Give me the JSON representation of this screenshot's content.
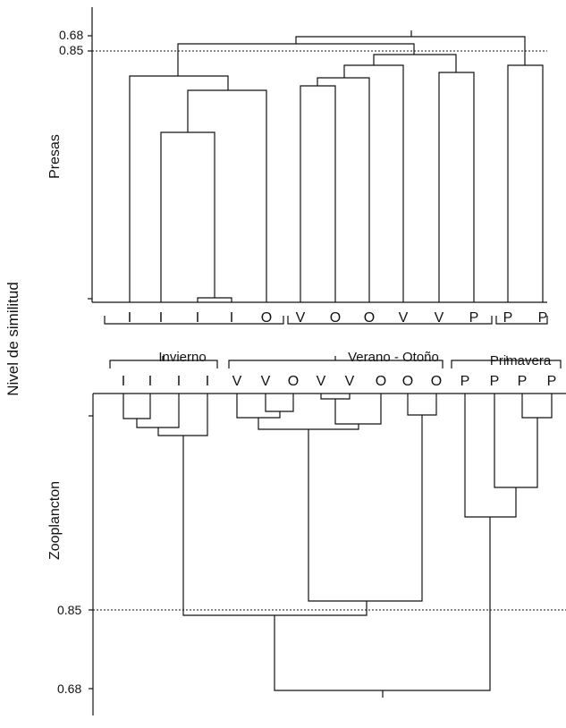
{
  "figure": {
    "y_axis_label": "Nivel de similitud",
    "groups": [
      "Invierno",
      "Verano - Otoño",
      "Primavera"
    ],
    "panels": [
      {
        "id": "presas",
        "label": "Presas",
        "tick_labels": [
          "0.68",
          "0.85"
        ],
        "leaves": [
          "I",
          "I",
          "I",
          "I",
          "O",
          "V",
          "O",
          "O",
          "V",
          "V",
          "P",
          "P",
          "P"
        ]
      },
      {
        "id": "zooplancton",
        "label": "Zooplancton",
        "tick_labels": [
          "0.85",
          "0.68"
        ],
        "leaves": [
          "I",
          "I",
          "I",
          "I",
          "V",
          "V",
          "O",
          "V",
          "V",
          "O",
          "O",
          "O",
          "P",
          "P",
          "P",
          "P"
        ]
      }
    ]
  }
}
